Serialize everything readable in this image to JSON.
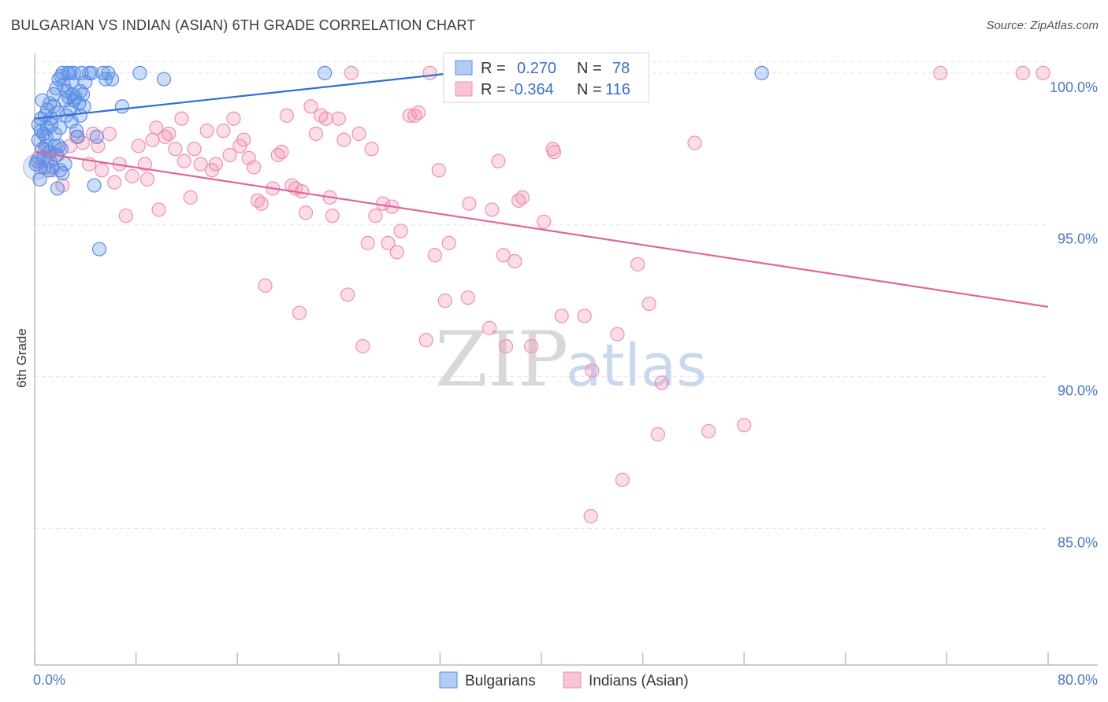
{
  "title": "BULGARIAN VS INDIAN (ASIAN) 6TH GRADE CORRELATION CHART",
  "source": "Source: ZipAtlas.com",
  "watermark": {
    "zip": "ZIP",
    "atlas": "atlas"
  },
  "colors": {
    "blue": "#5b8ee6",
    "blue_line": "#2f6fd0",
    "pink": "#f08fb0",
    "pink_line": "#e0669a",
    "tick_text": "#4a78c2",
    "grid": "#e3e3e3"
  },
  "legend": {
    "r_label": "R =",
    "n_label": "N =",
    "rows": [
      {
        "r": "0.270",
        "n": "78"
      },
      {
        "r": "-0.364",
        "n": "116"
      }
    ]
  },
  "chart_data": {
    "type": "scatter",
    "title": "BULGARIAN VS INDIAN (ASIAN) 6TH GRADE CORRELATION CHART",
    "xlabel": "",
    "ylabel": "6th Grade",
    "xlim": [
      0,
      80
    ],
    "ylim": [
      80.5,
      100.8
    ],
    "x_tick_labels": [
      "0.0%",
      "80.0%"
    ],
    "y_ticks": [
      {
        "value": 100,
        "label": "100.0%"
      },
      {
        "value": 95,
        "label": "95.0%"
      },
      {
        "value": 90,
        "label": "90.0%"
      },
      {
        "value": 85,
        "label": "85.0%"
      }
    ],
    "grid": true,
    "legend_position": "top-center",
    "series": [
      {
        "name": "Bulgarians",
        "color": "#5b8ee6",
        "R": 0.27,
        "N": 78,
        "trend": {
          "x": [
            0,
            33
          ],
          "y": [
            98.5,
            100.0
          ]
        },
        "points": [
          [
            0.1,
            97.0
          ],
          [
            0.3,
            98.3
          ],
          [
            0.3,
            97.8
          ],
          [
            0.5,
            98.5
          ],
          [
            0.5,
            98.1
          ],
          [
            0.6,
            97.5
          ],
          [
            0.7,
            97.2
          ],
          [
            0.8,
            98.6
          ],
          [
            0.8,
            96.9
          ],
          [
            0.9,
            97.9
          ],
          [
            1.0,
            98.8
          ],
          [
            1.0,
            98.2
          ],
          [
            1.1,
            97.4
          ],
          [
            1.2,
            99.0
          ],
          [
            1.2,
            97.1
          ],
          [
            1.3,
            98.5
          ],
          [
            1.4,
            96.9
          ],
          [
            1.5,
            99.3
          ],
          [
            1.5,
            98.9
          ],
          [
            1.6,
            97.6
          ],
          [
            1.7,
            99.5
          ],
          [
            1.7,
            97.3
          ],
          [
            1.8,
            98.7
          ],
          [
            1.8,
            96.2
          ],
          [
            1.9,
            99.8
          ],
          [
            2.0,
            98.2
          ],
          [
            2.0,
            96.8
          ],
          [
            2.1,
            99.9
          ],
          [
            2.1,
            97.5
          ],
          [
            2.2,
            100.0
          ],
          [
            2.3,
            99.6
          ],
          [
            2.4,
            99.1
          ],
          [
            2.5,
            98.6
          ],
          [
            2.5,
            99.4
          ],
          [
            2.6,
            100.0
          ],
          [
            2.7,
            99.2
          ],
          [
            2.8,
            100.0
          ],
          [
            2.8,
            98.8
          ],
          [
            2.9,
            99.7
          ],
          [
            3.0,
            99.3
          ],
          [
            3.1,
            100.0
          ],
          [
            3.2,
            99.2
          ],
          [
            3.3,
            98.1
          ],
          [
            3.4,
            97.9
          ],
          [
            3.5,
            99.0
          ],
          [
            3.6,
            99.4
          ],
          [
            3.7,
            100.0
          ],
          [
            3.8,
            99.3
          ],
          [
            3.9,
            98.9
          ],
          [
            4.0,
            99.7
          ],
          [
            4.3,
            100.0
          ],
          [
            4.5,
            100.0
          ],
          [
            4.7,
            96.3
          ],
          [
            4.9,
            97.9
          ],
          [
            5.1,
            94.2
          ],
          [
            5.4,
            100.0
          ],
          [
            5.6,
            99.8
          ],
          [
            5.8,
            100.0
          ],
          [
            6.1,
            99.8
          ],
          [
            6.9,
            98.9
          ],
          [
            8.3,
            100.0
          ],
          [
            10.2,
            99.8
          ],
          [
            22.9,
            100.0
          ],
          [
            57.4,
            100.0
          ],
          [
            0.4,
            96.5
          ],
          [
            0.9,
            97.6
          ],
          [
            1.3,
            98.3
          ],
          [
            2.4,
            97.0
          ],
          [
            2.9,
            98.4
          ],
          [
            3.6,
            98.6
          ],
          [
            0.6,
            99.1
          ],
          [
            1.6,
            98.0
          ],
          [
            2.2,
            96.7
          ],
          [
            0.2,
            97.1
          ],
          [
            0.7,
            98.0
          ],
          [
            1.9,
            97.6
          ],
          [
            3.1,
            99.1
          ],
          [
            1.1,
            96.8
          ]
        ]
      },
      {
        "name": "Indians (Asian)",
        "color": "#f08fb0",
        "R": -0.364,
        "N": 116,
        "trend": {
          "x": [
            0,
            80
          ],
          "y": [
            97.4,
            92.3
          ]
        },
        "points": [
          [
            0.3,
            97.2
          ],
          [
            0.5,
            96.9
          ],
          [
            0.8,
            97.5
          ],
          [
            1.0,
            97.1
          ],
          [
            1.2,
            97.4
          ],
          [
            1.4,
            96.8
          ],
          [
            1.8,
            97.3
          ],
          [
            2.2,
            96.3
          ],
          [
            2.8,
            97.6
          ],
          [
            3.3,
            97.9
          ],
          [
            3.8,
            97.7
          ],
          [
            4.3,
            97.0
          ],
          [
            4.6,
            98.0
          ],
          [
            5.0,
            97.6
          ],
          [
            5.3,
            96.8
          ],
          [
            5.9,
            98.0
          ],
          [
            6.3,
            96.4
          ],
          [
            6.7,
            97.0
          ],
          [
            7.2,
            95.3
          ],
          [
            7.7,
            96.6
          ],
          [
            8.2,
            97.6
          ],
          [
            8.7,
            97.0
          ],
          [
            8.9,
            96.5
          ],
          [
            9.3,
            97.8
          ],
          [
            9.6,
            98.2
          ],
          [
            9.8,
            95.5
          ],
          [
            10.3,
            97.9
          ],
          [
            10.6,
            98.0
          ],
          [
            11.1,
            97.5
          ],
          [
            11.6,
            98.5
          ],
          [
            11.8,
            97.1
          ],
          [
            12.3,
            95.9
          ],
          [
            12.6,
            97.5
          ],
          [
            13.1,
            97.0
          ],
          [
            13.6,
            98.1
          ],
          [
            14.0,
            96.8
          ],
          [
            14.3,
            97.0
          ],
          [
            14.9,
            98.1
          ],
          [
            15.4,
            97.3
          ],
          [
            15.7,
            98.5
          ],
          [
            16.2,
            97.6
          ],
          [
            16.5,
            97.8
          ],
          [
            16.9,
            97.2
          ],
          [
            17.3,
            96.9
          ],
          [
            17.6,
            95.8
          ],
          [
            17.9,
            95.7
          ],
          [
            18.2,
            93.0
          ],
          [
            18.8,
            96.2
          ],
          [
            19.2,
            97.3
          ],
          [
            19.5,
            97.4
          ],
          [
            19.9,
            98.6
          ],
          [
            20.3,
            96.3
          ],
          [
            20.6,
            96.2
          ],
          [
            20.9,
            92.1
          ],
          [
            21.1,
            96.1
          ],
          [
            21.4,
            95.4
          ],
          [
            21.8,
            98.9
          ],
          [
            22.2,
            98.0
          ],
          [
            22.6,
            98.6
          ],
          [
            23.0,
            98.5
          ],
          [
            23.3,
            95.9
          ],
          [
            23.5,
            95.3
          ],
          [
            24.0,
            98.5
          ],
          [
            24.4,
            97.8
          ],
          [
            24.7,
            92.7
          ],
          [
            25.0,
            100.0
          ],
          [
            25.6,
            98.0
          ],
          [
            25.9,
            91.0
          ],
          [
            26.3,
            94.4
          ],
          [
            26.6,
            97.5
          ],
          [
            26.9,
            95.3
          ],
          [
            27.5,
            95.7
          ],
          [
            27.9,
            94.4
          ],
          [
            28.2,
            95.6
          ],
          [
            28.6,
            94.1
          ],
          [
            28.9,
            94.8
          ],
          [
            29.6,
            98.6
          ],
          [
            30.0,
            98.6
          ],
          [
            30.3,
            98.7
          ],
          [
            30.9,
            91.2
          ],
          [
            31.2,
            100.0
          ],
          [
            31.6,
            94.0
          ],
          [
            31.9,
            96.8
          ],
          [
            32.4,
            92.5
          ],
          [
            32.7,
            94.4
          ],
          [
            34.2,
            92.6
          ],
          [
            34.3,
            95.7
          ],
          [
            35.9,
            91.6
          ],
          [
            36.1,
            95.5
          ],
          [
            36.6,
            97.1
          ],
          [
            37.0,
            94.0
          ],
          [
            37.2,
            91.0
          ],
          [
            37.9,
            93.8
          ],
          [
            38.2,
            95.8
          ],
          [
            38.5,
            95.9
          ],
          [
            39.2,
            91.0
          ],
          [
            40.2,
            95.1
          ],
          [
            40.9,
            97.5
          ],
          [
            41.0,
            97.4
          ],
          [
            41.6,
            92.0
          ],
          [
            43.4,
            92.0
          ],
          [
            43.9,
            85.4
          ],
          [
            44.0,
            90.2
          ],
          [
            46.0,
            91.4
          ],
          [
            46.4,
            86.6
          ],
          [
            47.2,
            100.0
          ],
          [
            47.6,
            93.7
          ],
          [
            48.5,
            92.4
          ],
          [
            49.5,
            89.8
          ],
          [
            49.2,
            88.1
          ],
          [
            52.1,
            97.7
          ],
          [
            53.2,
            88.2
          ],
          [
            56.0,
            88.4
          ],
          [
            71.5,
            100.0
          ],
          [
            78.0,
            100.0
          ],
          [
            79.6,
            100.0
          ]
        ]
      }
    ]
  },
  "bottom_legend": [
    {
      "label": "Bulgarians"
    },
    {
      "label": "Indians (Asian)"
    }
  ]
}
